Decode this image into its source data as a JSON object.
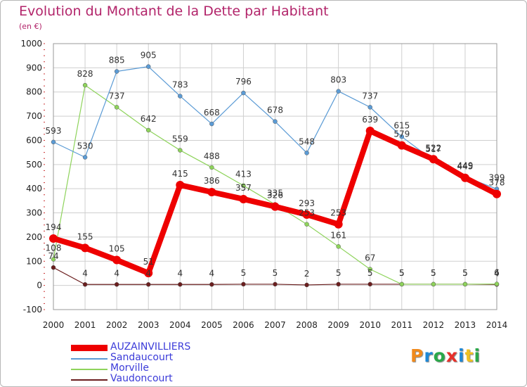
{
  "title": "Evolution du Montant de la Dette par Habitant",
  "unit": "(en €)",
  "logo": "Proxiti",
  "colors": {
    "title": "#b2246a",
    "legend_text": "#3b3bd9",
    "auzainvilliers": "#ee0000",
    "sandaucourt": "#5b9bd5",
    "morville": "#8ed35b",
    "vaudoncourt": "#6b1e1e",
    "grid": "#cfcfcf",
    "axis_ticks": "#cc3333"
  },
  "chart_data": {
    "type": "line",
    "title": "Evolution du Montant de la Dette par Habitant",
    "ylabel": "(en €)",
    "xlabel": "",
    "x": [
      2000,
      2001,
      2002,
      2003,
      2004,
      2005,
      2006,
      2007,
      2008,
      2009,
      2010,
      2011,
      2012,
      2013,
      2014
    ],
    "ylim": [
      -100,
      1000
    ],
    "yticks": [
      -100,
      0,
      100,
      200,
      300,
      400,
      500,
      600,
      700,
      800,
      900,
      1000
    ],
    "grid": true,
    "legend_position": "bottom-left",
    "series": [
      {
        "name": "AUZAINVILLIERS",
        "color": "#ee0000",
        "width": 8,
        "values": [
          194,
          155,
          105,
          51,
          415,
          386,
          357,
          326,
          293,
          253,
          639,
          579,
          522,
          445,
          378
        ]
      },
      {
        "name": "Sandaucourt",
        "color": "#5b9bd5",
        "width": 1.2,
        "values": [
          593,
          530,
          885,
          905,
          783,
          668,
          796,
          678,
          548,
          803,
          737,
          615,
          517,
          449,
          399
        ]
      },
      {
        "name": "Morville",
        "color": "#8ed35b",
        "width": 1.2,
        "values": [
          108,
          828,
          737,
          642,
          559,
          488,
          413,
          335,
          253,
          161,
          67,
          5,
          5,
          5,
          6
        ]
      },
      {
        "name": "Vaudoncourt",
        "color": "#6b1e1e",
        "width": 1.2,
        "values": [
          74,
          4,
          4,
          4,
          4,
          4,
          5,
          5,
          2,
          5,
          5,
          5,
          5,
          5,
          4
        ]
      }
    ]
  }
}
